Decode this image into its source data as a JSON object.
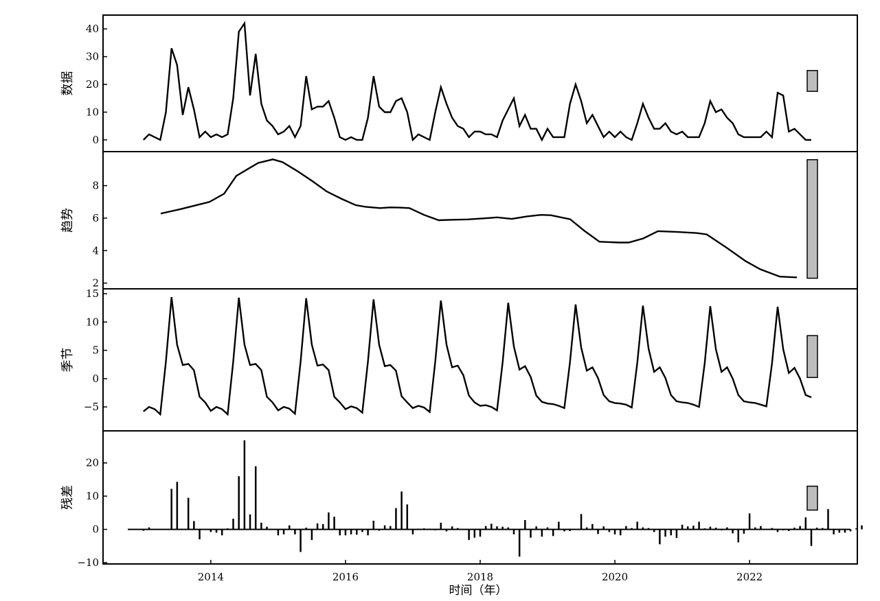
{
  "chart_data": {
    "type": "line",
    "xlabel": "时间（年）",
    "x_ticks": [
      2014,
      2016,
      2018,
      2020,
      2022
    ],
    "panels": [
      {
        "ylabel": "数据",
        "type": "line",
        "ylim": [
          -2,
          43
        ],
        "yticks": [
          0,
          10,
          20,
          30,
          40
        ],
        "series": [
          {
            "x_start": 2013.0,
            "step": 0.08333,
            "values": [
              0,
              2,
              1,
              0,
              10,
              33,
              27,
              9,
              19,
              11,
              1,
              3,
              1,
              2,
              1,
              2,
              15,
              39,
              42,
              16,
              31,
              13,
              7,
              5,
              2,
              3,
              5,
              1,
              5,
              23,
              11,
              12,
              12,
              14,
              8,
              1,
              0,
              1,
              0,
              0,
              8,
              23,
              12,
              10,
              10,
              14,
              15,
              10,
              0,
              2,
              1,
              0,
              10,
              19,
              13,
              8,
              5,
              4,
              1,
              3,
              3,
              2,
              2,
              1,
              7,
              11,
              15,
              5,
              9,
              4,
              4,
              0,
              4,
              1,
              1,
              1,
              13,
              20,
              14,
              6,
              9,
              5,
              1,
              3,
              1,
              3,
              1,
              0,
              6,
              13,
              8,
              4,
              4,
              6,
              3,
              2,
              3,
              1,
              1,
              1,
              6,
              14,
              10,
              11,
              8,
              6,
              2,
              1,
              1,
              1,
              1,
              3,
              1,
              17,
              16,
              3,
              4,
              2,
              0,
              0
            ]
          }
        ],
        "indicator_bar": [
          17.5,
          25
        ]
      },
      {
        "ylabel": "趋势",
        "type": "line",
        "ylim": [
          1.9,
          9.8
        ],
        "yticks": [
          2,
          4,
          6,
          8
        ],
        "series": [
          {
            "points": [
              [
                2013.0,
                6.28
              ],
              [
                2013.4,
                6.55
              ],
              [
                2013.8,
                6.85
              ],
              [
                2014.0,
                7.0
              ],
              [
                2014.3,
                7.5
              ],
              [
                2014.55,
                8.6
              ],
              [
                2014.8,
                9.05
              ],
              [
                2015.0,
                9.4
              ],
              [
                2015.3,
                9.62
              ],
              [
                2015.5,
                9.45
              ],
              [
                2015.8,
                8.9
              ],
              [
                2016.1,
                8.3
              ],
              [
                2016.4,
                7.65
              ],
              [
                2016.7,
                7.2
              ],
              [
                2017.0,
                6.8
              ],
              [
                2017.2,
                6.7
              ],
              [
                2017.5,
                6.62
              ],
              [
                2017.7,
                6.66
              ],
              [
                2017.9,
                6.65
              ],
              [
                2018.1,
                6.62
              ],
              [
                2018.4,
                6.2
              ],
              [
                2018.7,
                5.87
              ],
              [
                2019.0,
                5.9
              ],
              [
                2019.3,
                5.92
              ],
              [
                2019.7,
                6.0
              ],
              [
                2019.9,
                6.05
              ],
              [
                2020.2,
                5.95
              ],
              [
                2020.5,
                6.1
              ],
              [
                2020.8,
                6.2
              ],
              [
                2021.0,
                6.18
              ],
              [
                2021.4,
                5.93
              ],
              [
                2021.7,
                5.2
              ],
              [
                2022.0,
                4.55
              ],
              [
                2022.4,
                4.5
              ],
              [
                2022.6,
                4.5
              ],
              [
                2022.9,
                4.75
              ],
              [
                2023.2,
                5.2
              ],
              [
                2023.6,
                5.15
              ],
              [
                2024.0,
                5.08
              ],
              [
                2024.2,
                5.0
              ],
              [
                2024.6,
                4.2
              ],
              [
                2025.0,
                3.35
              ],
              [
                2025.3,
                2.85
              ],
              [
                2025.7,
                2.4
              ],
              [
                2026.05,
                2.35
              ]
            ]
          }
        ],
        "indicator_bar": [
          2.3,
          9.6
        ]
      },
      {
        "ylabel": "季节",
        "type": "line",
        "ylim": [
          -8.5,
          15.5
        ],
        "yticks": [
          -5,
          0,
          5,
          10,
          15
        ],
        "series": [
          {
            "x_start": 2013.0,
            "step": 0.08333,
            "values": [
              -5.8,
              -5.0,
              -5.4,
              -6.3,
              3.0,
              14.4,
              6.0,
              2.4,
              2.6,
              1.5,
              -3.2,
              -4.2,
              -5.7,
              -5.0,
              -5.4,
              -6.3,
              3.0,
              14.3,
              6.0,
              2.4,
              2.6,
              1.5,
              -3.2,
              -4.2,
              -5.6,
              -5.0,
              -5.3,
              -6.2,
              3.0,
              14.2,
              6.0,
              2.3,
              2.5,
              1.5,
              -3.2,
              -4.2,
              -5.4,
              -4.9,
              -5.2,
              -6.0,
              3.0,
              14.0,
              6.0,
              2.2,
              2.4,
              1.4,
              -3.1,
              -4.2,
              -5.2,
              -4.8,
              -5.1,
              -5.9,
              3.0,
              13.8,
              6.0,
              2.0,
              2.3,
              0.6,
              -3.0,
              -4.2,
              -4.8,
              -4.7,
              -5.0,
              -5.6,
              2.9,
              13.4,
              5.7,
              1.6,
              2.2,
              0.3,
              -3.0,
              -4.1,
              -4.4,
              -4.5,
              -4.8,
              -5.2,
              2.9,
              13.1,
              5.5,
              1.4,
              2.0,
              0.1,
              -2.9,
              -4.0,
              -4.3,
              -4.4,
              -4.6,
              -5.1,
              2.8,
              12.9,
              5.3,
              1.2,
              2.0,
              0.1,
              -2.9,
              -4.0,
              -4.2,
              -4.3,
              -4.6,
              -5.0,
              2.7,
              12.8,
              5.2,
              1.2,
              2.0,
              0.0,
              -2.9,
              -4.0,
              -4.2,
              -4.3,
              -4.6,
              -4.9,
              2.7,
              12.7,
              5.2,
              1.0,
              1.9,
              0.0,
              -2.9,
              -3.3
            ]
          }
        ],
        "indicator_bar": [
          0.2,
          7.6
        ]
      },
      {
        "ylabel": "残差",
        "type": "bar",
        "ylim": [
          -10,
          28
        ],
        "yticks": [
          -10,
          0,
          10,
          20
        ],
        "series": [
          {
            "x_start": 2013.0,
            "step": 0.08333,
            "values": [
              -0.4,
              0.6,
              0,
              0,
              0,
              12.2,
              14.3,
              0,
              9.5,
              2.5,
              -3.0,
              0,
              -0.8,
              -1.0,
              -1.8,
              0.3,
              3.2,
              16.0,
              26.8,
              4.5,
              19.0,
              2.0,
              0.8,
              0,
              -1.8,
              -1.5,
              1.2,
              -1.5,
              -6.8,
              0.5,
              -3.2,
              1.8,
              1.6,
              5.1,
              3.8,
              -1.8,
              -1.8,
              -1.5,
              -1.6,
              -0.8,
              -1.8,
              2.6,
              -0.4,
              1.2,
              1.0,
              6.4,
              11.4,
              7.5,
              -1.5,
              0.2,
              0.3,
              0.2,
              -0.3,
              2.0,
              -0.6,
              0.9,
              0.4,
              0,
              -3.2,
              -2.5,
              -2.2,
              1.0,
              1.7,
              0.9,
              0.8,
              0.6,
              -1.5,
              -8.2,
              2.8,
              -2.5,
              0.9,
              -2.2,
              0.6,
              -2.0,
              2.3,
              -0.6,
              -0.5,
              0,
              4.6,
              0.6,
              1.6,
              -1.4,
              0.9,
              -0.8,
              -1.5,
              -1.8,
              1.0,
              0.4,
              2.3,
              0.6,
              0.4,
              -0.8,
              -4.5,
              -2.2,
              -1.8,
              -2.6,
              1.4,
              0.9,
              1.1,
              2.3,
              0.3,
              0.8,
              0.5,
              -0.3,
              0.6,
              -1.2,
              -3.9,
              -1.3,
              4.8,
              0.6,
              1.0,
              0.1,
              0.4,
              -0.8,
              -0.3,
              -0.5,
              0.5,
              1.0,
              3.6,
              -5.0,
              0.5,
              0.4,
              6.1,
              -1.5,
              -1.0,
              -1.0,
              -0.6,
              0.3,
              1.2
            ]
          }
        ],
        "indicator_bar": [
          5.8,
          13.0
        ]
      }
    ]
  }
}
